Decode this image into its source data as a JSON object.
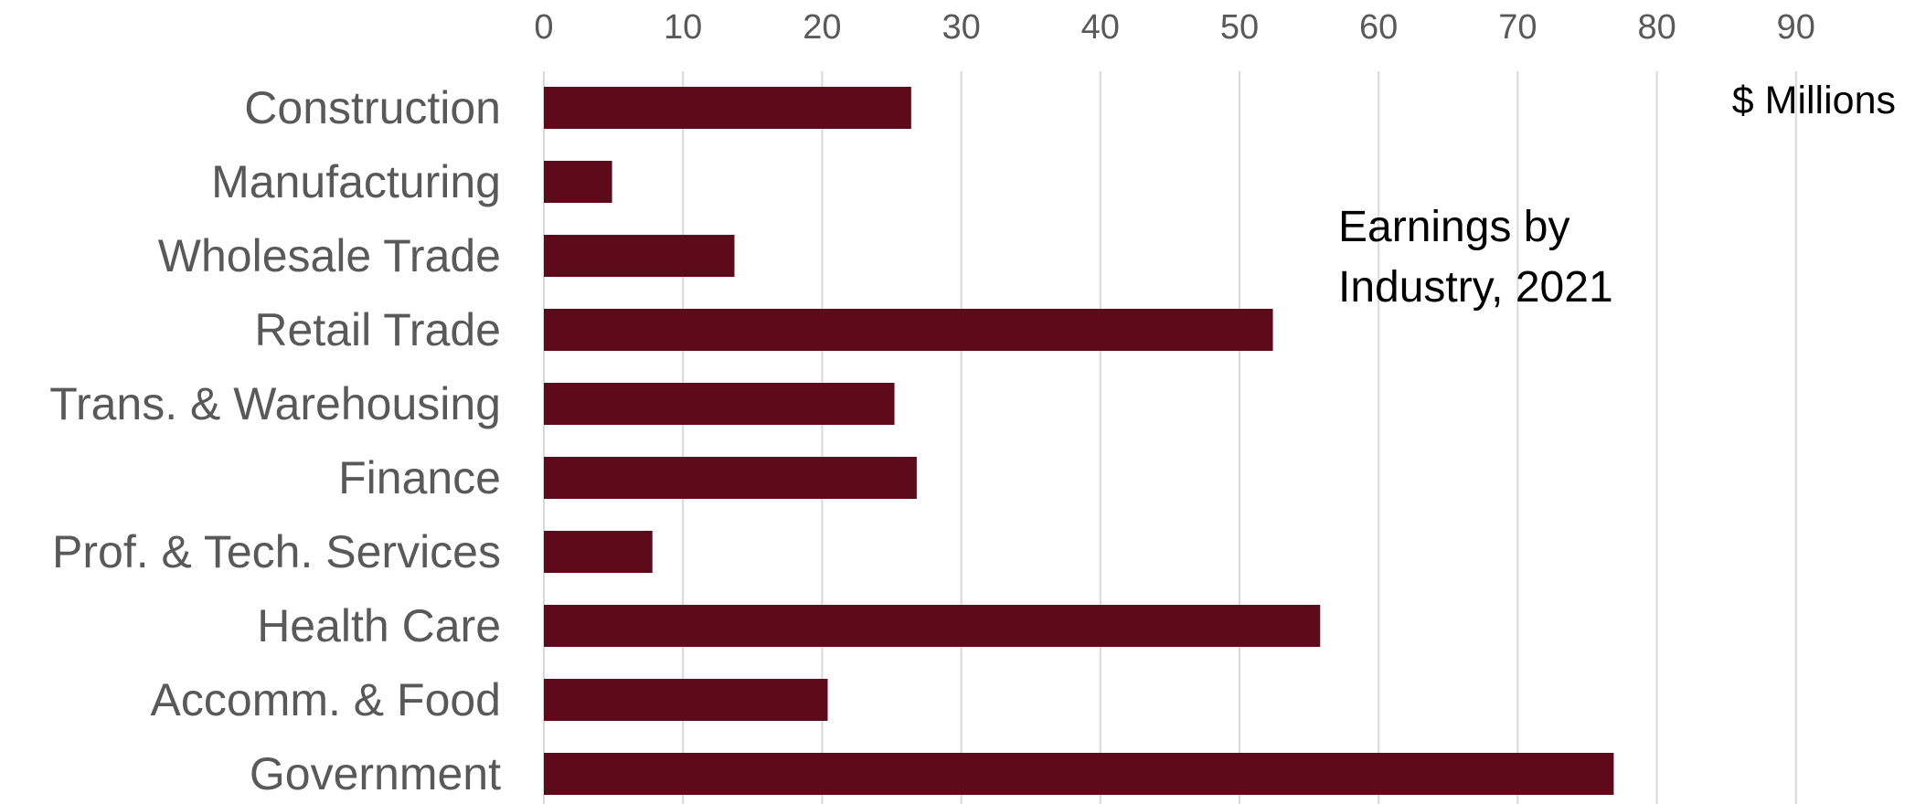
{
  "chart_data": {
    "type": "bar",
    "orientation": "horizontal",
    "title_lines": [
      "Earnings by",
      "Industry, 2021"
    ],
    "unit_label": "$ Millions",
    "categories": [
      "Construction",
      "Manufacturing",
      "Wholesale Trade",
      "Retail Trade",
      "Trans. & Warehousing",
      "Finance",
      "Prof. & Tech. Services",
      "Health Care",
      "Accomm. & Food",
      "Government"
    ],
    "values": [
      26.4,
      4.9,
      13.7,
      52.4,
      25.2,
      26.8,
      7.8,
      55.8,
      20.4,
      76.9
    ],
    "xlim": [
      0,
      90
    ],
    "xticks": [
      0,
      10,
      20,
      30,
      40,
      50,
      60,
      70,
      80,
      90
    ],
    "x_axis_position": "top",
    "grid": "vertical",
    "legend": "none",
    "bar_color": "#5e0a1a",
    "grid_color": "#d9d9d9",
    "label_color": "#595959"
  }
}
